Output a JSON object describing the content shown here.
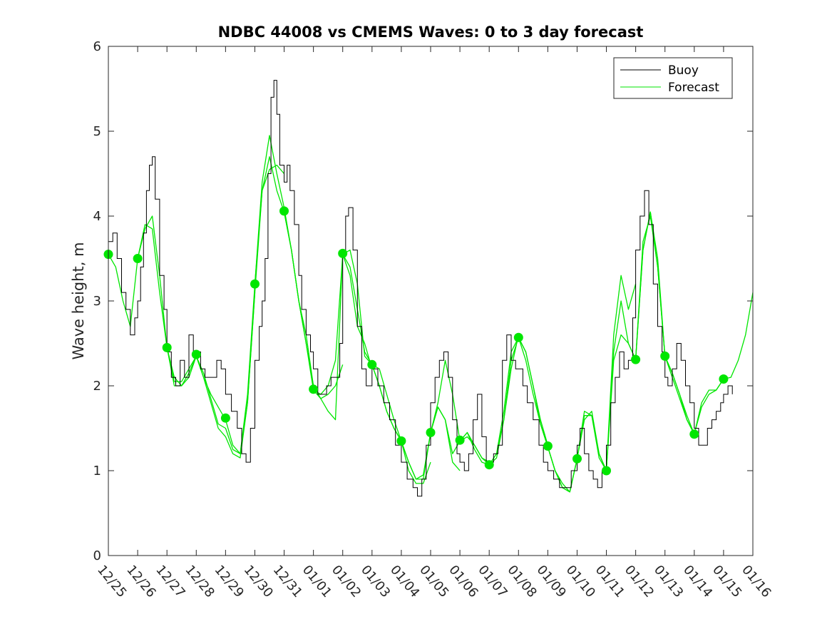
{
  "colors": {
    "buoy": "#000000",
    "forecast": "#00e600",
    "axis": "#262626"
  },
  "chart_data": {
    "type": "line",
    "title": "NDBC 44008 vs CMEMS Waves: 0 to 3 day forecast",
    "xlabel": "",
    "ylabel": "Wave height, m",
    "xlim": [
      0,
      22
    ],
    "ylim": [
      0,
      6
    ],
    "x_ticks": [
      0,
      1,
      2,
      3,
      4,
      5,
      6,
      7,
      8,
      9,
      10,
      11,
      12,
      13,
      14,
      15,
      16,
      17,
      18,
      19,
      20,
      21,
      22
    ],
    "x_tick_labels": [
      "12/25",
      "12/26",
      "12/27",
      "12/28",
      "12/29",
      "12/30",
      "12/31",
      "01/01",
      "01/02",
      "01/03",
      "01/04",
      "01/05",
      "01/06",
      "01/07",
      "01/08",
      "01/09",
      "01/10",
      "01/11",
      "01/12",
      "01/13",
      "01/14",
      "01/15",
      "01/16"
    ],
    "y_ticks": [
      0,
      1,
      2,
      3,
      4,
      5,
      6
    ],
    "y_tick_labels": [
      "0",
      "1",
      "2",
      "3",
      "4",
      "5",
      "6"
    ],
    "x_units": "days since 12/25",
    "legend": {
      "position": "top-right",
      "entries": [
        "Buoy",
        "Forecast"
      ]
    },
    "series": [
      {
        "name": "Buoy",
        "color": "#000000",
        "x": [
          0,
          0.15,
          0.3,
          0.45,
          0.6,
          0.75,
          0.9,
          1.0,
          1.1,
          1.2,
          1.3,
          1.4,
          1.5,
          1.6,
          1.75,
          1.9,
          2.0,
          2.15,
          2.3,
          2.45,
          2.6,
          2.75,
          2.9,
          3.0,
          3.15,
          3.3,
          3.5,
          3.7,
          3.85,
          4.0,
          4.2,
          4.4,
          4.55,
          4.7,
          4.85,
          5.0,
          5.15,
          5.25,
          5.35,
          5.45,
          5.55,
          5.65,
          5.75,
          5.85,
          6.0,
          6.1,
          6.2,
          6.35,
          6.5,
          6.6,
          6.75,
          6.9,
          7.0,
          7.15,
          7.3,
          7.45,
          7.6,
          7.75,
          7.9,
          8.0,
          8.1,
          8.2,
          8.35,
          8.5,
          8.65,
          8.8,
          9.0,
          9.2,
          9.4,
          9.6,
          9.8,
          10.0,
          10.2,
          10.4,
          10.55,
          10.7,
          10.85,
          11.0,
          11.15,
          11.3,
          11.45,
          11.6,
          11.75,
          11.9,
          12.0,
          12.15,
          12.3,
          12.45,
          12.6,
          12.75,
          12.9,
          13.0,
          13.15,
          13.3,
          13.45,
          13.6,
          13.75,
          13.9,
          14.0,
          14.15,
          14.3,
          14.5,
          14.7,
          14.85,
          15.0,
          15.2,
          15.4,
          15.6,
          15.8,
          16.0,
          16.1,
          16.25,
          16.4,
          16.55,
          16.7,
          16.85,
          17.0,
          17.15,
          17.3,
          17.45,
          17.6,
          17.75,
          17.9,
          18.0,
          18.15,
          18.3,
          18.45,
          18.6,
          18.75,
          18.9,
          19.0,
          19.1,
          19.25,
          19.4,
          19.55,
          19.7,
          19.85,
          20.0,
          20.15,
          20.3,
          20.45,
          20.6,
          20.75,
          20.9,
          21.0,
          21.15,
          21.3
        ],
        "y": [
          3.7,
          3.8,
          3.5,
          3.1,
          2.9,
          2.6,
          2.8,
          3.0,
          3.4,
          3.8,
          4.3,
          4.6,
          4.7,
          4.2,
          3.3,
          2.9,
          2.4,
          2.1,
          2.0,
          2.3,
          2.1,
          2.6,
          2.4,
          2.4,
          2.2,
          2.1,
          2.1,
          2.3,
          2.2,
          1.9,
          1.7,
          1.5,
          1.2,
          1.1,
          1.5,
          2.3,
          2.7,
          3.0,
          3.5,
          4.5,
          5.4,
          5.6,
          5.2,
          4.6,
          4.4,
          4.6,
          4.3,
          3.9,
          3.3,
          2.9,
          2.6,
          2.4,
          2.2,
          1.9,
          1.9,
          2.0,
          2.1,
          2.1,
          2.5,
          3.6,
          4.0,
          4.1,
          3.6,
          2.7,
          2.2,
          2.0,
          2.2,
          2.0,
          1.8,
          1.6,
          1.3,
          1.1,
          0.9,
          0.8,
          0.7,
          0.9,
          1.3,
          1.8,
          2.1,
          2.3,
          2.4,
          2.1,
          1.6,
          1.2,
          1.1,
          1.0,
          1.2,
          1.6,
          1.9,
          1.4,
          1.1,
          1.1,
          1.2,
          1.3,
          2.3,
          2.6,
          2.3,
          2.2,
          2.2,
          2.0,
          1.8,
          1.6,
          1.3,
          1.1,
          1.0,
          0.9,
          0.8,
          0.8,
          1.0,
          1.3,
          1.5,
          1.2,
          1.0,
          0.9,
          0.8,
          1.0,
          1.3,
          1.8,
          2.1,
          2.4,
          2.2,
          2.3,
          2.8,
          3.6,
          4.0,
          4.3,
          3.9,
          3.2,
          2.7,
          2.4,
          2.1,
          2.0,
          2.2,
          2.5,
          2.3,
          2.0,
          1.8,
          1.5,
          1.3,
          1.3,
          1.5,
          1.6,
          1.7,
          1.8,
          1.9,
          2.0,
          1.9
        ]
      },
      {
        "name": "Forecast",
        "color": "#00e600",
        "runs": [
          {
            "x": [
              0,
              0.25,
              0.5,
              0.75,
              1.0,
              1.25,
              1.5,
              1.75,
              2.0,
              2.25,
              2.5,
              2.75,
              3.0
            ],
            "y": [
              3.55,
              3.4,
              3.0,
              2.7,
              3.5,
              3.9,
              3.85,
              3.1,
              2.45,
              2.1,
              2.0,
              2.1,
              2.35
            ]
          },
          {
            "x": [
              1,
              1.25,
              1.5,
              1.75,
              2.0,
              2.25,
              2.5,
              2.75,
              3.0,
              3.25,
              3.5,
              3.75,
              4.0
            ],
            "y": [
              3.5,
              3.85,
              4.0,
              3.3,
              2.45,
              2.05,
              2.05,
              2.2,
              2.35,
              2.1,
              1.9,
              1.75,
              1.6
            ]
          },
          {
            "x": [
              2,
              2.25,
              2.5,
              2.75,
              3.0,
              3.25,
              3.5,
              3.75,
              4.0,
              4.25,
              4.5,
              4.75,
              5.0
            ],
            "y": [
              2.45,
              2.0,
              2.0,
              2.15,
              2.35,
              2.15,
              1.85,
              1.55,
              1.5,
              1.25,
              1.2,
              1.8,
              3.1
            ]
          },
          {
            "x": [
              3,
              3.25,
              3.5,
              3.75,
              4.0,
              4.25,
              4.5,
              4.75,
              5.0,
              5.25,
              5.5,
              5.75,
              6.0
            ],
            "y": [
              2.35,
              2.1,
              1.8,
              1.5,
              1.4,
              1.2,
              1.15,
              1.8,
              3.1,
              4.3,
              4.55,
              4.6,
              4.5
            ]
          },
          {
            "x": [
              4,
              4.25,
              4.5,
              4.75,
              5.0,
              5.25,
              5.5,
              5.75,
              6.0,
              6.25,
              6.5,
              6.75,
              7.0
            ],
            "y": [
              1.6,
              1.3,
              1.2,
              1.9,
              3.2,
              4.4,
              4.95,
              4.5,
              4.1,
              3.6,
              3.0,
              2.6,
              2.0
            ]
          },
          {
            "x": [
              5,
              5.25,
              5.5,
              5.75,
              6.0,
              6.25,
              6.5,
              6.75,
              7.0,
              7.25,
              7.5,
              7.75,
              8.0
            ],
            "y": [
              3.2,
              4.3,
              4.7,
              4.3,
              4.05,
              3.6,
              3.0,
              2.5,
              2.0,
              1.85,
              1.9,
              2.0,
              2.25
            ]
          },
          {
            "x": [
              6,
              6.25,
              6.5,
              6.75,
              7.0,
              7.25,
              7.5,
              7.75,
              8.0,
              8.25,
              8.5,
              8.75,
              9.0
            ],
            "y": [
              4.05,
              3.6,
              3.0,
              2.5,
              1.95,
              1.85,
              1.7,
              1.6,
              3.55,
              3.3,
              2.7,
              2.5,
              2.2
            ]
          },
          {
            "x": [
              7,
              7.25,
              7.5,
              7.75,
              8.0,
              8.25,
              8.5,
              8.75,
              9.0,
              9.25,
              9.5,
              9.75,
              10.0
            ],
            "y": [
              1.95,
              1.9,
              2.0,
              2.3,
              3.55,
              3.6,
              3.2,
              2.35,
              2.25,
              2.2,
              1.9,
              1.6,
              1.35
            ]
          },
          {
            "x": [
              8,
              8.25,
              8.5,
              8.75,
              9.0,
              9.25,
              9.5,
              9.75,
              10.0,
              10.25,
              10.5,
              10.75,
              11.0
            ],
            "y": [
              3.55,
              3.4,
              2.9,
              2.4,
              2.25,
              2.0,
              1.7,
              1.5,
              1.35,
              1.0,
              0.85,
              0.85,
              1.1
            ]
          },
          {
            "x": [
              9,
              9.25,
              9.5,
              9.75,
              10.0,
              10.25,
              10.5,
              10.75,
              11.0,
              11.25,
              11.5,
              11.75,
              12.0
            ],
            "y": [
              2.25,
              2.0,
              1.7,
              1.5,
              1.35,
              1.1,
              0.9,
              0.95,
              1.45,
              1.75,
              1.6,
              1.1,
              1.0
            ]
          },
          {
            "x": [
              10,
              10.25,
              10.5,
              10.75,
              11.0,
              11.25,
              11.5,
              11.75,
              12.0,
              12.25,
              12.5,
              12.75,
              13.0
            ],
            "y": [
              1.35,
              1.1,
              0.9,
              0.9,
              1.45,
              1.75,
              1.6,
              1.2,
              1.35,
              1.45,
              1.3,
              1.15,
              1.1
            ]
          },
          {
            "x": [
              11,
              11.25,
              11.5,
              11.75,
              12.0,
              12.25,
              12.5,
              12.75,
              13.0,
              13.25,
              13.5,
              13.75,
              14.0
            ],
            "y": [
              1.45,
              1.8,
              2.3,
              1.9,
              1.35,
              1.45,
              1.25,
              1.1,
              1.07,
              1.2,
              1.6,
              2.2,
              2.6
            ]
          },
          {
            "x": [
              12,
              12.25,
              12.5,
              12.75,
              13.0,
              13.25,
              13.5,
              13.75,
              14.0,
              14.25,
              14.5,
              14.75,
              15.0
            ],
            "y": [
              1.35,
              1.4,
              1.3,
              1.15,
              1.07,
              1.15,
              1.6,
              2.3,
              2.57,
              2.4,
              2.0,
              1.6,
              1.3
            ]
          },
          {
            "x": [
              13,
              13.25,
              13.5,
              13.75,
              14.0,
              14.25,
              14.5,
              14.75,
              15.0,
              15.25,
              15.5,
              15.75,
              16.0
            ],
            "y": [
              1.07,
              1.2,
              1.7,
              2.4,
              2.57,
              2.4,
              2.0,
              1.55,
              1.28,
              1.0,
              0.85,
              0.75,
              1.14
            ]
          },
          {
            "x": [
              14,
              14.25,
              14.5,
              14.75,
              15.0,
              15.25,
              15.5,
              15.75,
              16.0,
              16.25,
              16.5,
              16.75,
              17.0
            ],
            "y": [
              2.57,
              2.3,
              1.9,
              1.55,
              1.28,
              1.0,
              0.8,
              0.75,
              1.14,
              1.6,
              1.7,
              1.2,
              1.0
            ]
          },
          {
            "x": [
              15,
              15.25,
              15.5,
              15.75,
              16.0,
              16.25,
              16.5,
              16.75,
              17.0,
              17.25,
              17.5,
              17.75,
              18.0
            ],
            "y": [
              1.28,
              1.0,
              0.8,
              0.75,
              1.14,
              1.7,
              1.65,
              1.2,
              1.0,
              2.6,
              3.3,
              2.9,
              3.2
            ]
          },
          {
            "x": [
              16,
              16.25,
              16.5,
              16.75,
              17.0,
              17.25,
              17.5,
              17.75,
              18.0,
              18.25,
              18.5,
              18.75,
              19.0
            ],
            "y": [
              1.14,
              1.65,
              1.65,
              1.15,
              1.0,
              2.4,
              3.0,
              2.5,
              2.31,
              3.6,
              4.05,
              3.5,
              2.35
            ]
          },
          {
            "x": [
              17,
              17.25,
              17.5,
              17.75,
              18.0,
              18.25,
              18.5,
              18.75,
              19.0,
              19.25,
              19.5,
              19.75,
              20.0
            ],
            "y": [
              1.0,
              2.3,
              2.6,
              2.5,
              2.31,
              3.7,
              4.0,
              3.4,
              2.35,
              2.15,
              1.9,
              1.6,
              1.43
            ]
          },
          {
            "x": [
              18,
              18.25,
              18.5,
              18.75,
              19.0,
              19.25,
              19.5,
              19.75,
              20.0,
              20.25,
              20.5,
              20.75,
              21.0
            ],
            "y": [
              2.31,
              3.6,
              4.05,
              3.4,
              2.35,
              2.1,
              1.85,
              1.6,
              1.43,
              1.75,
              1.9,
              1.95,
              2.08
            ]
          },
          {
            "x": [
              19,
              19.25,
              19.5,
              19.75,
              20.0,
              20.25,
              20.5,
              20.75,
              21.0,
              21.25,
              21.5,
              21.75,
              22.0
            ],
            "y": [
              2.35,
              2.15,
              1.9,
              1.65,
              1.43,
              1.8,
              1.95,
              1.95,
              2.08,
              2.1,
              2.3,
              2.6,
              3.1
            ]
          }
        ],
        "analysis_points": {
          "x": [
            0,
            1,
            2,
            3,
            4,
            5,
            6,
            7,
            8,
            9,
            10,
            11,
            12,
            13,
            14,
            15,
            16,
            17,
            18,
            19,
            20,
            21
          ],
          "y": [
            3.55,
            3.5,
            2.45,
            2.37,
            1.62,
            3.2,
            4.06,
            1.96,
            3.56,
            2.25,
            1.35,
            1.45,
            1.36,
            1.07,
            2.57,
            1.29,
            1.14,
            1.0,
            2.31,
            2.35,
            1.43,
            2.08
          ]
        }
      }
    ]
  }
}
